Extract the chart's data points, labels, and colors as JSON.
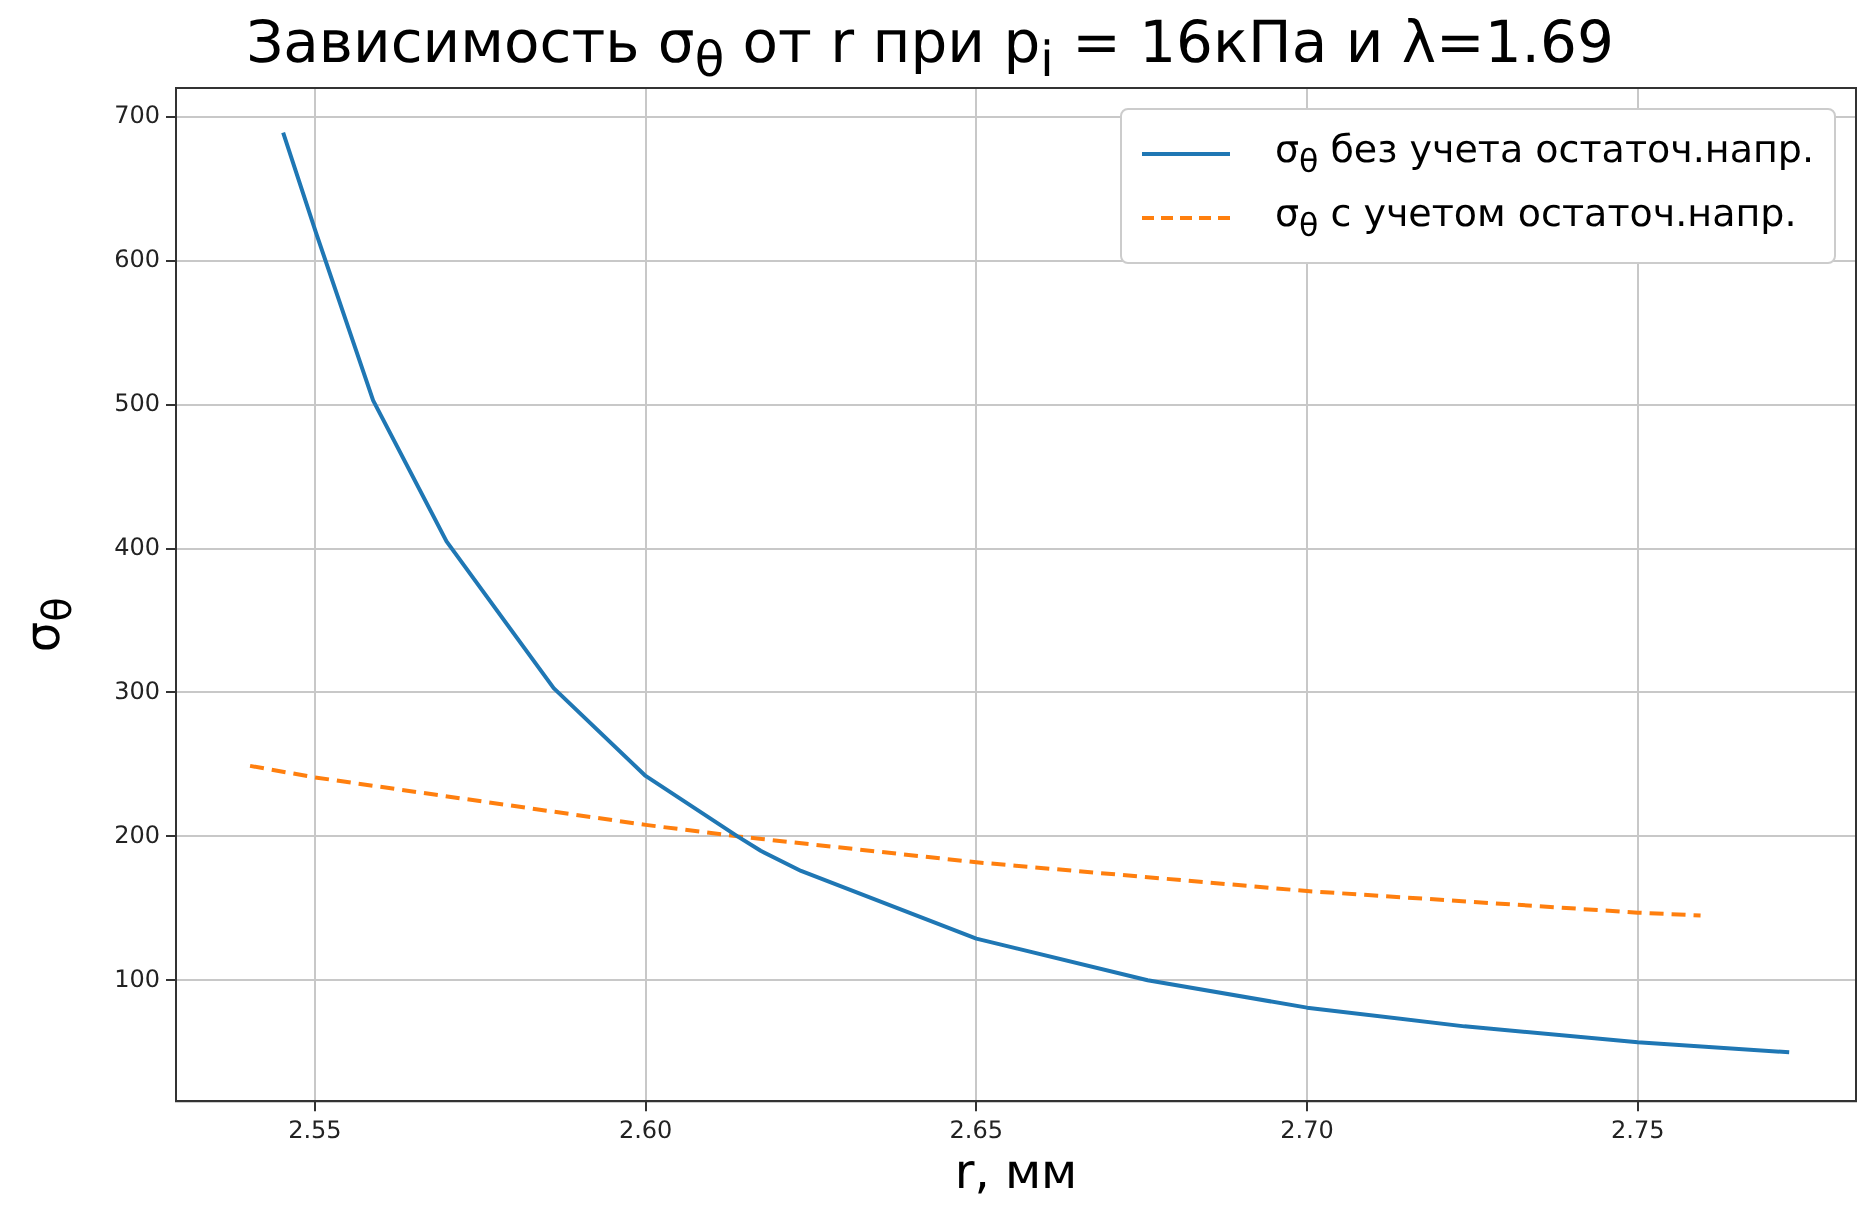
{
  "chart_data": {
    "type": "line",
    "title": "Зависимость σ$_{θ}$ от r при p$_{i}$ = 16кПа и λ=1.69",
    "xlabel": "r, мм",
    "ylabel": "σ$_{θ}$",
    "xlim": [
      2.529,
      2.783
    ],
    "xticks": [
      {
        "value": 2.55,
        "label": "2.55"
      },
      {
        "value": 2.6,
        "label": "2.60"
      },
      {
        "value": 2.65,
        "label": "2.65"
      },
      {
        "value": 2.7,
        "label": "2.70"
      },
      {
        "value": 2.75,
        "label": "2.75"
      }
    ],
    "ylim": [
      16,
      720
    ],
    "yticks": [
      100,
      200,
      300,
      400,
      500,
      600,
      700
    ],
    "grid": true,
    "legend": "top right",
    "series": [
      {
        "name": "σ$_{θ}$ без учета остаточ.напр.",
        "color": "#1f77b4",
        "line_style": "solid",
        "x": [
          2.5452,
          2.5502,
          2.5588,
          2.5699,
          2.5861,
          2.6,
          2.6139,
          2.6174,
          2.6235,
          2.65,
          2.6759,
          2.7,
          2.7238,
          2.75,
          2.7729
        ],
        "values": [
          689,
          619,
          503,
          405,
          303,
          242,
          200,
          190,
          176,
          129,
          100,
          81,
          68,
          57,
          50
        ]
      },
      {
        "name": "σ$_{θ}$ с учетом остаточ.напр.",
        "color": "#ff7f0e",
        "line_style": "dashed",
        "x": [
          2.5402,
          2.55,
          2.6,
          2.6139,
          2.65,
          2.7,
          2.75,
          2.7595
        ],
        "values": [
          249,
          241,
          208,
          200,
          182,
          162,
          147,
          145
        ]
      }
    ]
  }
}
